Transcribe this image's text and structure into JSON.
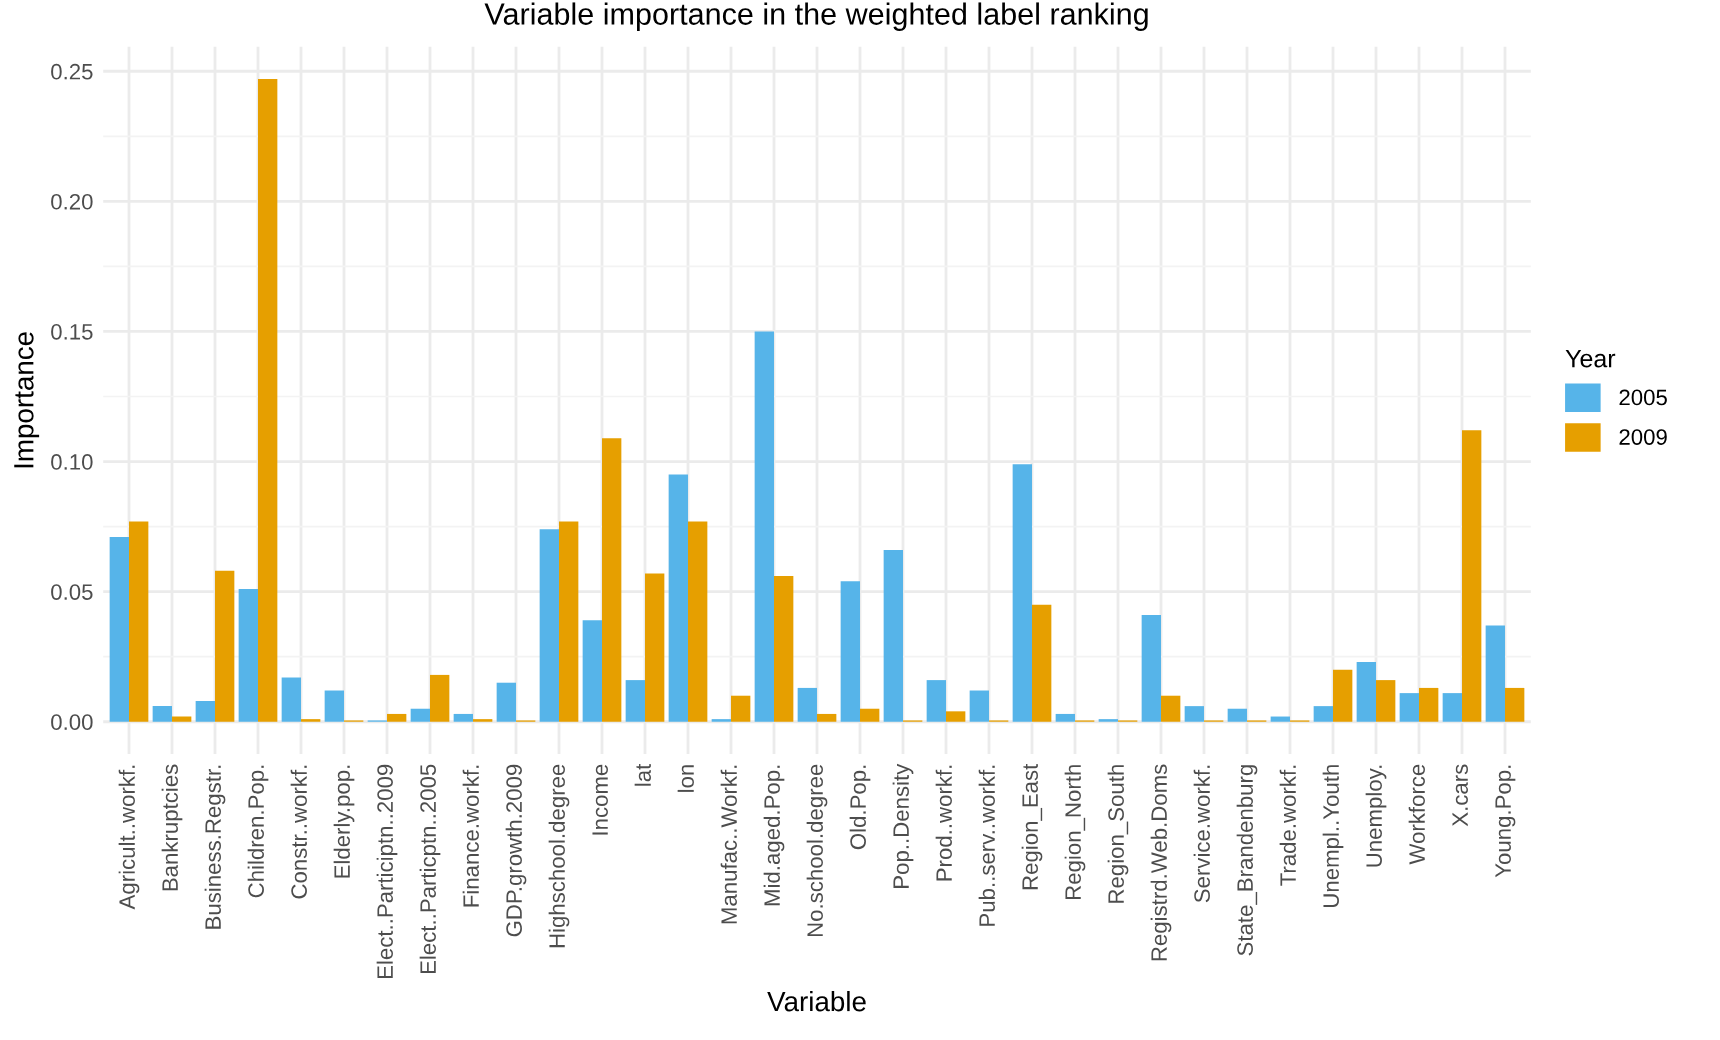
{
  "chart_data": {
    "type": "bar",
    "title": "Variable importance in the weighted label ranking",
    "xlabel": "Variable",
    "ylabel": "Importance",
    "legend_title": "Year",
    "categories": [
      "Agricult..workf.",
      "Bankruptcies",
      "Business.Regstr.",
      "Children.Pop.",
      "Constr..workf.",
      "Elderly.pop.",
      "Elect..Participtn..2009",
      "Elect..Particptn..2005",
      "Finance.workf.",
      "GDP.growth.2009",
      "Highschool.degree",
      "Income",
      "lat",
      "lon",
      "Manufac..Workf.",
      "Mid.aged.Pop.",
      "No.school.degree",
      "Old.Pop.",
      "Pop..Density",
      "Prod..workf.",
      "Pub..serv..workf.",
      "Region_East",
      "Region_North",
      "Region_South",
      "Registrd.Web.Doms",
      "Service.workf.",
      "State_Brandenburg",
      "Trade.workf.",
      "Unempl..Youth",
      "Unemploy.",
      "Workforce",
      "X.cars",
      "Young.Pop."
    ],
    "series": [
      {
        "name": "2005",
        "color": "#56b4e9",
        "values": [
          0.071,
          0.006,
          0.008,
          0.051,
          0.017,
          0.012,
          0.0005,
          0.005,
          0.003,
          0.015,
          0.074,
          0.039,
          0.016,
          0.095,
          0.001,
          0.15,
          0.013,
          0.054,
          0.066,
          0.016,
          0.012,
          0.099,
          0.003,
          0.001,
          0.041,
          0.006,
          0.005,
          0.002,
          0.006,
          0.023,
          0.011,
          0.011,
          0.037
        ]
      },
      {
        "name": "2009",
        "color": "#e69f00",
        "values": [
          0.077,
          0.002,
          0.058,
          0.247,
          0.001,
          0.0005,
          0.003,
          0.018,
          0.001,
          0.0005,
          0.077,
          0.109,
          0.057,
          0.077,
          0.01,
          0.056,
          0.003,
          0.005,
          0.0005,
          0.004,
          0.0005,
          0.045,
          0.0005,
          0.0005,
          0.01,
          0.0005,
          0.0005,
          0.0005,
          0.02,
          0.016,
          0.013,
          0.112,
          0.013
        ]
      }
    ],
    "ylim": [
      -0.0124,
      0.2594
    ],
    "yticks": [
      {
        "value": 0,
        "label": "0.00"
      },
      {
        "value": 0.05,
        "label": "0.05"
      },
      {
        "value": 0.1,
        "label": "0.10"
      },
      {
        "value": 0.15,
        "label": "0.15"
      },
      {
        "value": 0.2,
        "label": "0.20"
      },
      {
        "value": 0.25,
        "label": "0.25"
      }
    ],
    "grid": true,
    "legend": "right"
  }
}
